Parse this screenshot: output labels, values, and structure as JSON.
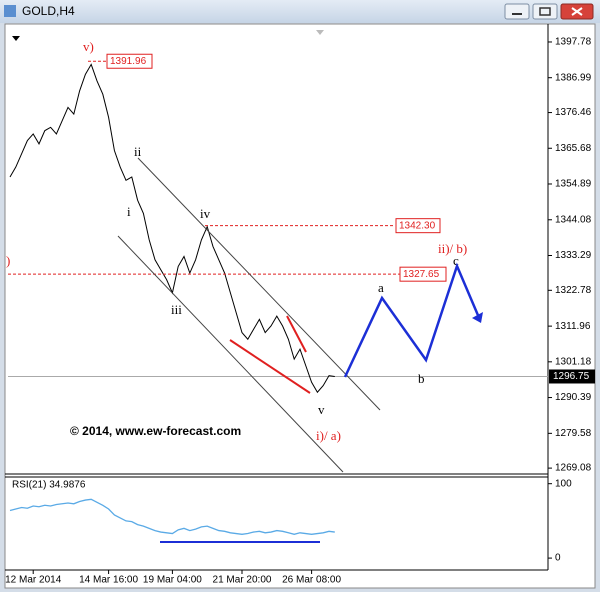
{
  "window": {
    "title": "GOLD,H4"
  },
  "chart_data": [
    {
      "type": "line",
      "categories": [
        null,
        null,
        null,
        null,
        "12 Mar 2014",
        null,
        null,
        null,
        null,
        null,
        null,
        null,
        null,
        null,
        null,
        null,
        null,
        "14 Mar 16:00",
        null,
        null,
        null,
        null,
        null,
        null,
        null,
        null,
        null,
        null,
        "19 Mar 04:00",
        null,
        null,
        null,
        null,
        null,
        null,
        null,
        null,
        null,
        null,
        null,
        "21 Mar 20:00",
        null,
        null,
        null,
        null,
        null,
        null,
        null,
        null,
        null,
        null,
        null,
        "26 Mar 08:00",
        null,
        null,
        null,
        null
      ],
      "series": [
        {
          "name": "GOLD,H4",
          "color": "#000000",
          "values": [
            1357,
            1360,
            1364,
            1368,
            1370,
            1367,
            1371,
            1372,
            1370,
            1374,
            1378,
            1376,
            1383,
            1388,
            1391,
            1386,
            1382,
            1375,
            1365,
            1360,
            1356,
            1357,
            1350,
            1346,
            1338,
            1332,
            1329,
            1326,
            1322,
            1330,
            1333,
            1328,
            1332,
            1338,
            1342,
            1336,
            1332,
            1328,
            1322,
            1316,
            1310,
            1308,
            1311,
            1314,
            1310,
            1312,
            1315,
            1312,
            1308,
            1302,
            1305,
            1300,
            1295,
            1292,
            1294,
            1297,
            1296.75
          ]
        }
      ],
      "ylim": [
        1267.3,
        1402
      ],
      "yticks": [
        1397.78,
        1386.99,
        1376.46,
        1365.68,
        1354.89,
        1344.08,
        1333.29,
        1322.78,
        1311.96,
        1301.18,
        1290.39,
        1279.58,
        1269.08
      ],
      "last_price": 1296.75,
      "levels": [
        {
          "value": 1391.96,
          "label": "1391.96"
        },
        {
          "value": 1342.3,
          "label": "1342.30"
        },
        {
          "value": 1327.65,
          "label": "1327.65"
        }
      ],
      "level_color": "#e02020",
      "annotations": [
        {
          "text": "v)",
          "color": "#e02020"
        },
        {
          "text": "ii",
          "color": "#000000"
        },
        {
          "text": "i",
          "color": "#000000"
        },
        {
          "text": "iv",
          "color": "#000000"
        },
        {
          "text": "iii",
          "color": "#000000"
        },
        {
          "text": "v",
          "color": "#000000"
        },
        {
          "text": "i)/ a)",
          "color": "#e02020"
        },
        {
          "text": "ii)/ b)",
          "color": "#e02020"
        },
        {
          "text": "a",
          "color": "#000000"
        },
        {
          "text": "b",
          "color": "#000000"
        },
        {
          "text": "c",
          "color": "#000000"
        },
        {
          "text": ")",
          "color": "#e02020"
        }
      ],
      "watermark": "© 2014, www.ew-forecast.com"
    },
    {
      "type": "line",
      "title": "RSI(21) 34.9876",
      "series": [
        {
          "name": "RSI(21)",
          "color": "#5aaae6",
          "values": [
            64,
            66,
            68,
            67,
            70,
            69,
            71,
            70,
            72,
            73,
            74,
            73,
            76,
            78,
            79,
            75,
            71,
            66,
            58,
            54,
            50,
            49,
            45,
            43,
            40,
            37,
            35,
            34,
            33,
            38,
            40,
            37,
            39,
            42,
            43,
            40,
            37,
            36,
            34,
            33,
            32,
            33,
            35,
            36,
            34,
            35,
            37,
            36,
            34,
            32,
            34,
            33,
            32,
            33,
            34,
            36,
            34.9876
          ]
        }
      ],
      "ylim": [
        -16,
        109
      ],
      "yticks": [
        100,
        0
      ]
    }
  ]
}
